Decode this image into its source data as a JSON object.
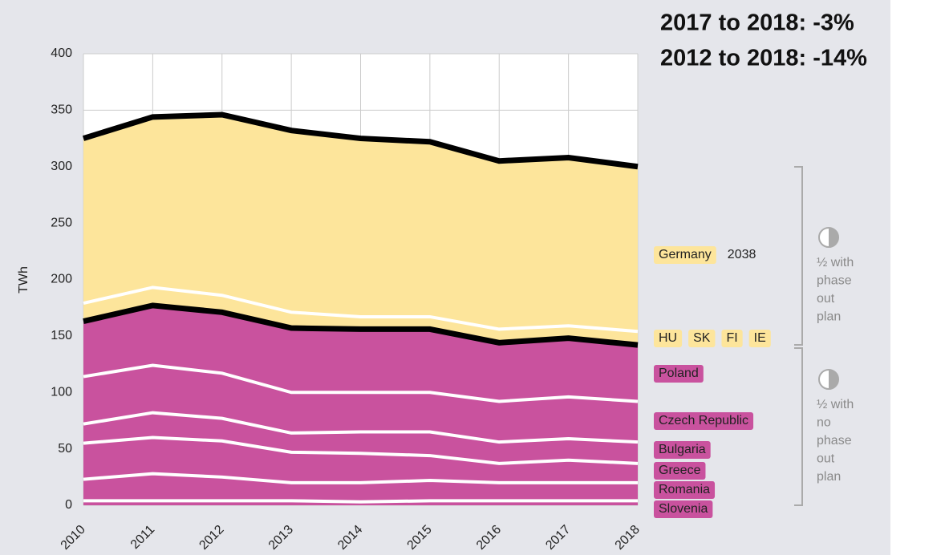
{
  "chart_data": {
    "type": "stacked_area",
    "annotations": [
      "2017 to 2018: -3%",
      "2012 to 2018: -14%"
    ],
    "y_label": "TWh",
    "categories": [
      "2010",
      "2011",
      "2012",
      "2013",
      "2014",
      "2015",
      "2016",
      "2017",
      "2018"
    ],
    "ylim": [
      0,
      400
    ],
    "yticks": [
      0,
      50,
      100,
      150,
      200,
      250,
      300,
      350,
      400
    ],
    "grid": true,
    "series": [
      {
        "name": "Slovenia",
        "color": "#c9529e",
        "edge": "#ffffff",
        "values": [
          4,
          4,
          4,
          4,
          3,
          4,
          4,
          4,
          4
        ]
      },
      {
        "name": "Romania",
        "color": "#c9529e",
        "edge": "#ffffff",
        "values": [
          19,
          24,
          21,
          16,
          17,
          18,
          16,
          16,
          16
        ]
      },
      {
        "name": "Greece",
        "color": "#c9529e",
        "edge": "#ffffff",
        "values": [
          32,
          32,
          32,
          27,
          26,
          22,
          17,
          20,
          17
        ]
      },
      {
        "name": "Bulgaria",
        "color": "#c9529e",
        "edge": "#ffffff",
        "values": [
          17,
          22,
          20,
          17,
          19,
          21,
          19,
          19,
          19
        ]
      },
      {
        "name": "Czech Republic",
        "color": "#c9529e",
        "edge": "#ffffff",
        "values": [
          42,
          42,
          40,
          36,
          35,
          35,
          36,
          37,
          36
        ]
      },
      {
        "name": "Poland",
        "color": "#c9529e",
        "edge": "#000000",
        "values": [
          49,
          53,
          54,
          57,
          56,
          56,
          52,
          52,
          50
        ]
      },
      {
        "labels": [
          "HU",
          "SK",
          "FI",
          "IE"
        ],
        "color": "#fde59b",
        "edge": "#ffffff",
        "values": [
          16,
          16,
          15,
          14,
          11,
          11,
          12,
          11,
          12
        ]
      },
      {
        "name": "Germany",
        "note": "2038",
        "color": "#fde59b",
        "edge": "#000000",
        "values": [
          146,
          151,
          160,
          161,
          158,
          155,
          149,
          149,
          146
        ]
      }
    ],
    "groups": [
      {
        "label": [
          "½ with",
          "phase",
          "out",
          "plan"
        ]
      },
      {
        "label": [
          "½ with",
          "no",
          "phase",
          "out",
          "plan"
        ]
      }
    ]
  }
}
